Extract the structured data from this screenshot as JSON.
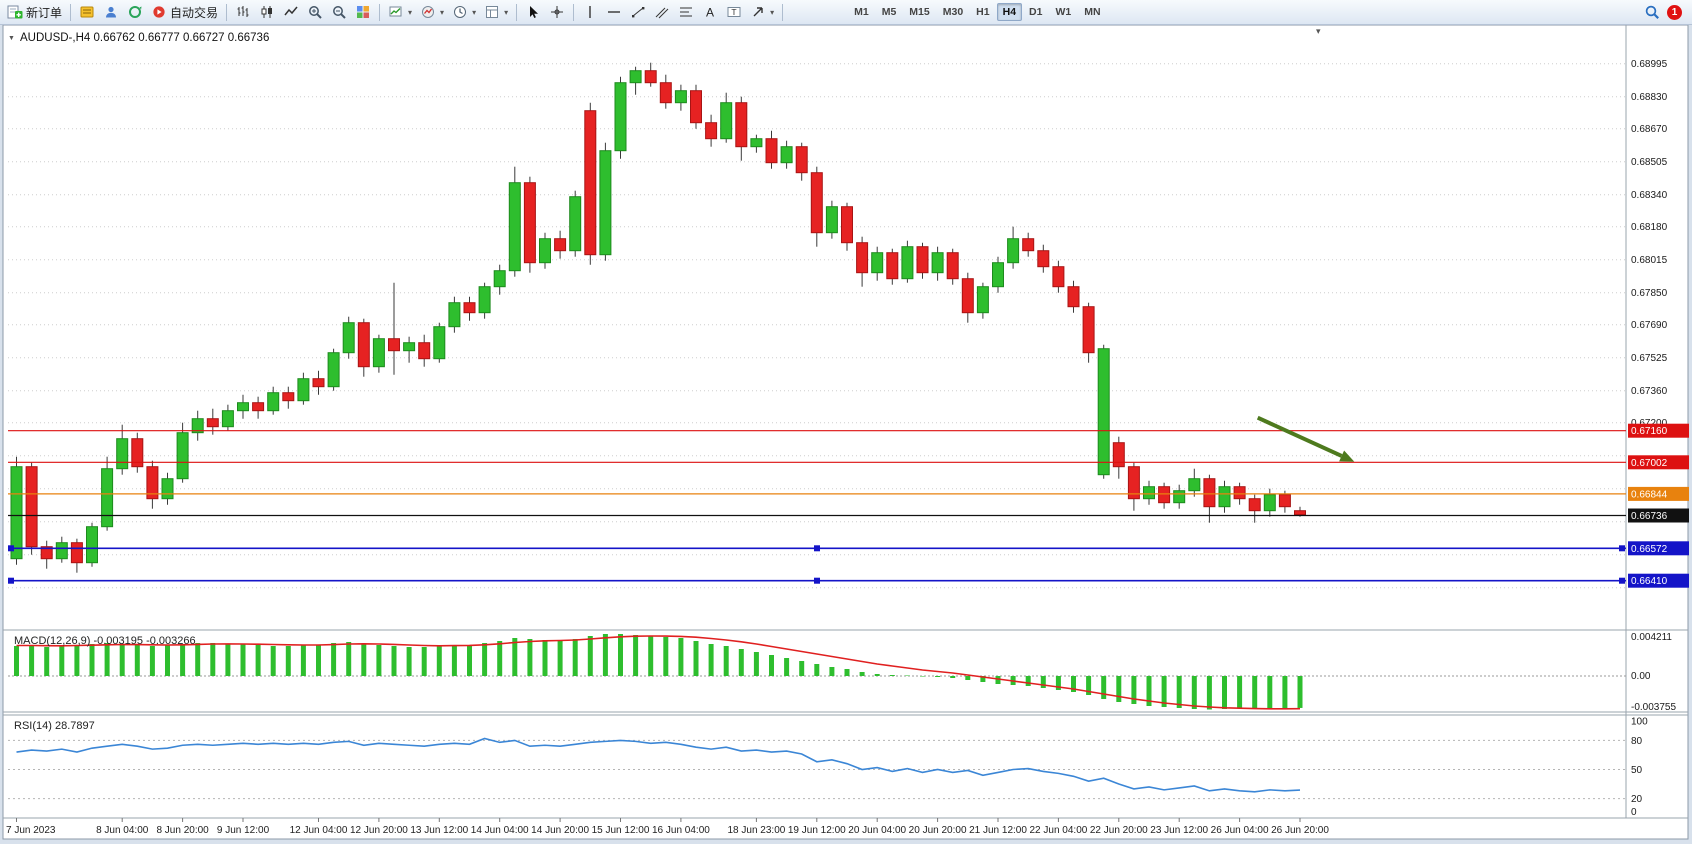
{
  "icons": {
    "dropdown": "▾",
    "collapse": "▼",
    "chart_menu": "▾"
  },
  "toolbar": {
    "new_order_label": "新订单",
    "auto_trading_label": "自动交易",
    "timeframes": [
      "M1",
      "M5",
      "M15",
      "M30",
      "H1",
      "H4",
      "D1",
      "W1",
      "MN"
    ],
    "active_timeframe": "H4",
    "notification_count": "1"
  },
  "chart_data": {
    "type": "candlestick",
    "title": {
      "symbol": "AUDUSD-,H4",
      "open": "0.66762",
      "high": "0.66777",
      "low": "0.66727",
      "close": "0.66736"
    },
    "colors": {
      "bull": "#2ebe2e",
      "bull_edge": "#1d8a1d",
      "bear": "#e62222",
      "bear_edge": "#a81414",
      "wick": "#3a3a3a",
      "grid": "#cdcdcd",
      "macd_hist": "#2ebe2e",
      "macd_signal": "#e02020",
      "rsi_line": "#3b86d6",
      "axis_text": "#1a1a1a"
    },
    "price_axis": {
      "ticks": [
        {
          "v": 0.68995,
          "label": "0.68995"
        },
        {
          "v": 0.6883,
          "label": "0.68830"
        },
        {
          "v": 0.6867,
          "label": "0.68670"
        },
        {
          "v": 0.68505,
          "label": "0.68505"
        },
        {
          "v": 0.6834,
          "label": "0.68340"
        },
        {
          "v": 0.6818,
          "label": "0.68180"
        },
        {
          "v": 0.68015,
          "label": "0.68015"
        },
        {
          "v": 0.6785,
          "label": "0.67850"
        },
        {
          "v": 0.6769,
          "label": "0.67690"
        },
        {
          "v": 0.67525,
          "label": "0.67525"
        },
        {
          "v": 0.6736,
          "label": "0.67360"
        },
        {
          "v": 0.672,
          "label": "0.67200"
        }
      ],
      "minor_levels": [
        0.67035,
        0.6687,
        0.66705,
        0.6654,
        0.66375
      ]
    },
    "pip_divisor": 10000,
    "candles": [
      [
        6652,
        6703,
        6649,
        6698
      ],
      [
        6698,
        6700,
        6654,
        6658
      ],
      [
        6658,
        6661,
        6647,
        6652
      ],
      [
        6652,
        6663,
        6650,
        6660
      ],
      [
        6660,
        6662,
        6645,
        6650
      ],
      [
        6650,
        6670,
        6648,
        6668
      ],
      [
        6668,
        6703,
        6666,
        6697
      ],
      [
        6697,
        6719,
        6694,
        6712
      ],
      [
        6712,
        6715,
        6695,
        6698
      ],
      [
        6698,
        6701,
        6677,
        6682
      ],
      [
        6682,
        6695,
        6679,
        6692
      ],
      [
        6692,
        6720,
        6690,
        6715
      ],
      [
        6715,
        6726,
        6711,
        6722
      ],
      [
        6722,
        6727,
        6714,
        6718
      ],
      [
        6718,
        6729,
        6716,
        6726
      ],
      [
        6726,
        6734,
        6722,
        6730
      ],
      [
        6730,
        6733,
        6722,
        6726
      ],
      [
        6726,
        6738,
        6724,
        6735
      ],
      [
        6735,
        6738,
        6727,
        6731
      ],
      [
        6731,
        6745,
        6729,
        6742
      ],
      [
        6742,
        6746,
        6734,
        6738
      ],
      [
        6738,
        6757,
        6736,
        6755
      ],
      [
        6755,
        6773,
        6752,
        6770
      ],
      [
        6770,
        6772,
        6743,
        6748
      ],
      [
        6748,
        6764,
        6745,
        6762
      ],
      [
        6762,
        6790,
        6744,
        6756
      ],
      [
        6756,
        6763,
        6750,
        6760
      ],
      [
        6760,
        6764,
        6748,
        6752
      ],
      [
        6752,
        6770,
        6750,
        6768
      ],
      [
        6768,
        6783,
        6765,
        6780
      ],
      [
        6780,
        6783,
        6771,
        6775
      ],
      [
        6775,
        6790,
        6772,
        6788
      ],
      [
        6788,
        6799,
        6784,
        6796
      ],
      [
        6796,
        6848,
        6793,
        6840
      ],
      [
        6840,
        6843,
        6795,
        6800
      ],
      [
        6800,
        6815,
        6797,
        6812
      ],
      [
        6812,
        6816,
        6802,
        6806
      ],
      [
        6806,
        6836,
        6803,
        6833
      ],
      [
        6876,
        6880,
        6799,
        6804
      ],
      [
        6804,
        6860,
        6801,
        6856
      ],
      [
        6856,
        6893,
        6852,
        6890
      ],
      [
        6890,
        6898,
        6884,
        6896
      ],
      [
        6896,
        6900,
        6888,
        6890
      ],
      [
        6890,
        6894,
        6877,
        6880
      ],
      [
        6880,
        6889,
        6876,
        6886
      ],
      [
        6886,
        6889,
        6867,
        6870
      ],
      [
        6870,
        6874,
        6858,
        6862
      ],
      [
        6862,
        6885,
        6860,
        6880
      ],
      [
        6880,
        6883,
        6851,
        6858
      ],
      [
        6858,
        6864,
        6855,
        6862
      ],
      [
        6862,
        6866,
        6847,
        6850
      ],
      [
        6850,
        6861,
        6847,
        6858
      ],
      [
        6858,
        6860,
        6841,
        6845
      ],
      [
        6845,
        6848,
        6808,
        6815
      ],
      [
        6815,
        6831,
        6812,
        6828
      ],
      [
        6828,
        6830,
        6806,
        6810
      ],
      [
        6810,
        6813,
        6788,
        6795
      ],
      [
        6795,
        6808,
        6791,
        6805
      ],
      [
        6805,
        6807,
        6789,
        6792
      ],
      [
        6792,
        6811,
        6790,
        6808
      ],
      [
        6808,
        6810,
        6792,
        6795
      ],
      [
        6795,
        6808,
        6791,
        6805
      ],
      [
        6805,
        6807,
        6789,
        6792
      ],
      [
        6792,
        6795,
        6770,
        6775
      ],
      [
        6775,
        6790,
        6772,
        6788
      ],
      [
        6788,
        6803,
        6785,
        6800
      ],
      [
        6800,
        6818,
        6797,
        6812
      ],
      [
        6812,
        6815,
        6803,
        6806
      ],
      [
        6806,
        6809,
        6795,
        6798
      ],
      [
        6798,
        6801,
        6785,
        6788
      ],
      [
        6788,
        6791,
        6775,
        6778
      ],
      [
        6778,
        6780,
        6750,
        6755
      ],
      [
        6694,
        6759,
        6692,
        6757
      ],
      [
        6710,
        6713,
        6692,
        6698
      ],
      [
        6698,
        6700,
        6676,
        6682
      ],
      [
        6682,
        6691,
        6679,
        6688
      ],
      [
        6688,
        6690,
        6677,
        6680
      ],
      [
        6680,
        6689,
        6677,
        6686
      ],
      [
        6686,
        6697,
        6683,
        6692
      ],
      [
        6692,
        6694,
        6670,
        6678
      ],
      [
        6678,
        6691,
        6675,
        6688
      ],
      [
        6688,
        6690,
        6679,
        6682
      ],
      [
        6682,
        6684,
        6670,
        6676
      ],
      [
        6676,
        6687,
        6673,
        6684
      ],
      [
        6684,
        6686,
        6675,
        6678
      ],
      [
        6676,
        6678,
        6673,
        6674
      ]
    ],
    "time_labels": [
      {
        "i": 0,
        "t": "7 Jun 2023"
      },
      {
        "i": 7,
        "t": "8 Jun 04:00"
      },
      {
        "i": 11,
        "t": "8 Jun 20:00"
      },
      {
        "i": 15,
        "t": "9 Jun 12:00"
      },
      {
        "i": 20,
        "t": "12 Jun 04:00"
      },
      {
        "i": 24,
        "t": "12 Jun 20:00"
      },
      {
        "i": 28,
        "t": "13 Jun 12:00"
      },
      {
        "i": 32,
        "t": "14 Jun 04:00"
      },
      {
        "i": 36,
        "t": "14 Jun 20:00"
      },
      {
        "i": 40,
        "t": "15 Jun 12:00"
      },
      {
        "i": 44,
        "t": "16 Jun 04:00"
      },
      {
        "i": 49,
        "t": "18 Jun 23:00"
      },
      {
        "i": 53,
        "t": "19 Jun 12:00"
      },
      {
        "i": 57,
        "t": "20 Jun 04:00"
      },
      {
        "i": 61,
        "t": "20 Jun 20:00"
      },
      {
        "i": 65,
        "t": "21 Jun 12:00"
      },
      {
        "i": 69,
        "t": "22 Jun 04:00"
      },
      {
        "i": 73,
        "t": "22 Jun 20:00"
      },
      {
        "i": 77,
        "t": "23 Jun 12:00"
      },
      {
        "i": 81,
        "t": "26 Jun 04:00"
      },
      {
        "i": 85,
        "t": "26 Jun 20:00"
      }
    ],
    "hlines": [
      {
        "price": 0.6716,
        "label": "0.67160",
        "color": "#dd1111",
        "selected": false
      },
      {
        "price": 0.67002,
        "label": "0.67002",
        "color": "#dd1111",
        "selected": false
      },
      {
        "price": 0.66844,
        "label": "0.66844",
        "color": "#e8820e",
        "selected": false
      },
      {
        "price": 0.66736,
        "label": "0.66736",
        "color": "#111111",
        "selected": false
      },
      {
        "price": 0.66572,
        "label": "0.66572",
        "color": "#1414c8",
        "selected": true
      },
      {
        "price": 0.6641,
        "label": "0.66410",
        "color": "#1414c8",
        "selected": true
      }
    ],
    "arrow": {
      "i1": 82.2,
      "p1": 0.67225,
      "i2": 88.6,
      "p2": 0.67005,
      "color": "#4e7a1e"
    },
    "macd": {
      "title": "MACD(12,26,9)",
      "value_main": "-0.003195",
      "value_signal": "-0.003266",
      "scale_max": "0.004211",
      "scale_zero": "0.00",
      "scale_min": "-0.003755",
      "histogram": [
        3.0,
        3.1,
        2.9,
        3.0,
        3.1,
        3.2,
        3.3,
        3.2,
        3.1,
        3.0,
        3.1,
        3.2,
        3.3,
        3.3,
        3.2,
        3.2,
        3.1,
        3.0,
        3.0,
        3.1,
        3.1,
        3.3,
        3.4,
        3.2,
        3.1,
        3.0,
        2.9,
        2.9,
        3.0,
        3.1,
        3.1,
        3.3,
        3.5,
        3.8,
        3.7,
        3.6,
        3.6,
        3.7,
        4.0,
        4.2,
        4.2,
        4.1,
        4.0,
        3.9,
        3.8,
        3.5,
        3.2,
        3.0,
        2.7,
        2.4,
        2.1,
        1.8,
        1.5,
        1.2,
        0.9,
        0.7,
        0.4,
        0.2,
        0.1,
        0.05,
        -0.05,
        -0.1,
        -0.2,
        -0.4,
        -0.6,
        -0.8,
        -0.9,
        -1.0,
        -1.2,
        -1.4,
        -1.6,
        -1.9,
        -2.3,
        -2.6,
        -2.8,
        -3.0,
        -3.1,
        -3.2,
        -3.3,
        -3.35,
        -3.3,
        -3.25,
        -3.3,
        -3.3,
        -3.25,
        -3.195
      ],
      "signal": [
        3.05,
        3.05,
        3.03,
        3.02,
        3.05,
        3.08,
        3.12,
        3.15,
        3.14,
        3.12,
        3.1,
        3.12,
        3.16,
        3.2,
        3.21,
        3.2,
        3.18,
        3.15,
        3.12,
        3.1,
        3.1,
        3.14,
        3.2,
        3.22,
        3.2,
        3.16,
        3.1,
        3.05,
        3.02,
        3.04,
        3.06,
        3.12,
        3.22,
        3.35,
        3.45,
        3.52,
        3.55,
        3.6,
        3.7,
        3.82,
        3.92,
        3.98,
        4.0,
        3.99,
        3.96,
        3.88,
        3.75,
        3.6,
        3.42,
        3.2,
        2.95,
        2.7,
        2.45,
        2.2,
        1.95,
        1.7,
        1.45,
        1.2,
        1.0,
        0.8,
        0.6,
        0.45,
        0.3,
        0.1,
        -0.1,
        -0.3,
        -0.5,
        -0.7,
        -0.9,
        -1.1,
        -1.3,
        -1.55,
        -1.8,
        -2.05,
        -2.3,
        -2.5,
        -2.7,
        -2.85,
        -3.0,
        -3.1,
        -3.18,
        -3.22,
        -3.26,
        -3.28,
        -3.28,
        -3.266
      ]
    },
    "rsi": {
      "title": "RSI(14)",
      "value": "28.7897",
      "scale": [
        100,
        80,
        50,
        20,
        0
      ],
      "levels": [
        80,
        50,
        20
      ],
      "values": [
        68,
        70,
        69,
        71,
        68,
        72,
        74,
        76,
        74,
        71,
        72,
        75,
        76,
        75,
        76,
        77,
        76,
        77,
        76,
        77,
        76,
        78,
        79,
        75,
        77,
        76,
        75,
        74,
        76,
        77,
        76,
        82,
        78,
        80,
        74,
        75,
        74,
        76,
        78,
        79,
        80,
        79,
        77,
        78,
        76,
        73,
        71,
        73,
        69,
        70,
        68,
        69,
        66,
        58,
        60,
        56,
        50,
        52,
        48,
        51,
        47,
        50,
        47,
        49,
        44,
        47,
        50,
        51,
        48,
        46,
        43,
        38,
        41,
        35,
        30,
        32,
        29,
        31,
        33,
        28,
        30,
        28,
        27,
        29,
        28,
        28.79
      ]
    }
  }
}
